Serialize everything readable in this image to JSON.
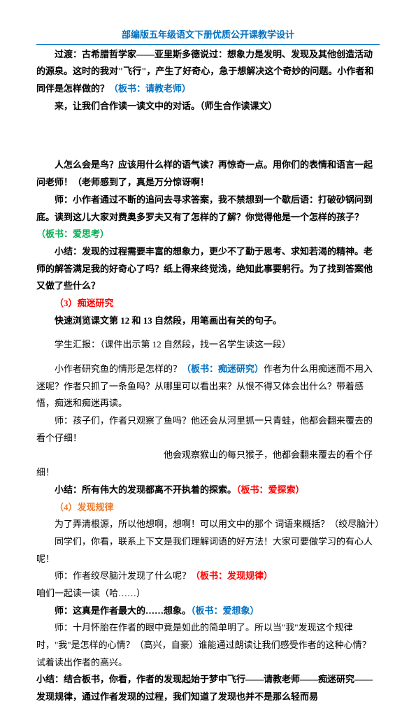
{
  "header": {
    "title": "部编版五年级语文下册优质公开课教学设计"
  },
  "t": {
    "p1a": "过渡：古希腊哲学家——亚里斯多德说过：想象力是发明、发现及其他创造活动的源泉。这时的我对\"飞行\"，产生了好奇心，急于想解决这个奇妙的问题。小作者和同伴是怎样做的？",
    "p1b": "（板书：请教老师）",
    "p2": "来，让我们合作读一读文中的对话。（师生合作读课文）",
    "p3a": "人怎么会是鸟？应该用什么样的语气读？再惊奇一点。用你们的表情和语言一起问老师！",
    "p3b": "（老师感到了，真是万分惊讶啊！",
    "p4a": "师：小作者通过不断的追问去寻求答案，我不禁想到一个歇后语：打破砂锅问到底。读到这儿大家对费奥多罗夫又有了怎样的了解？你觉得他是一个怎样的孩子？",
    "p4b": "（板书：爱思考）",
    "p5": "小结：发现的过程需要丰富的想象力，更少不了勤于思考、求知若渴的精神。老师的解答满足我的好奇心了吗？纸上得来终觉浅，绝知此事要躬行。为了找到答案他又做了些什么？",
    "p6": "（3）痴迷研究",
    "p7": "快速浏览课文第 12 和 13 自然段，用笔画出有关的句子。",
    "p8": "学生汇报：（课件出示第 12 自然段，找一名学生读这一段）",
    "p9a": "小作者研究鱼的情形是怎样的？",
    "p9b": "（板书：痴迷研究）",
    "p9c": "作者为什么用痴迷而不用入迷呢？作者只抓了一条鱼吗？从哪里可以看出来？从恨不得又体会出什么？带着感悟，痴迷和痴迷再读。",
    "p10": "师：孩子们，作者只观察了鱼吗？他还会从河里抓一只青蛙，他都会翻来覆去的看个仔细！",
    "p11": "他会观察猴山的每只猴子，他都会翻来覆去的看个仔细！",
    "p12a": "小结：所有伟大的发现都离不开执着的探索。",
    "p12b": "（板书：爱探索）",
    "p13": "（4）发现规律",
    "p14": "为了弄清根源，所以他想啊，想啊！可以用文中的那个 词语来概括？（绞尽脑汁）",
    "p15": "同学们，你看，联系上下文是我们理解词语的好方法！大家可要做学习的有心人呢！",
    "p16a": "师：作者绞尽脑汁发现了什么呢？",
    "p16b": "（板书：发现规律）",
    "p16c": "咱们一起读一读（哈……）",
    "p17a": "师：这真是作者最大的……想象。",
    "p17b": "（板书：爱想象）",
    "p18": "师：十月怀胎在作者的眼中竟是如此的简单明了。所以当\"我\"发现这个规律时，\"我\"是怎样的心情？（高兴，自豪）谁能通过朗读让我们感受作者的这种心情？试着读出作者的高兴。",
    "p19": "小结：结合板书，你看，作者的发现起始于梦中飞行——请教老师——痴迷研究——发现规律，通过作者发现的过程，我们知道了发现也并不是那么轻而易"
  }
}
